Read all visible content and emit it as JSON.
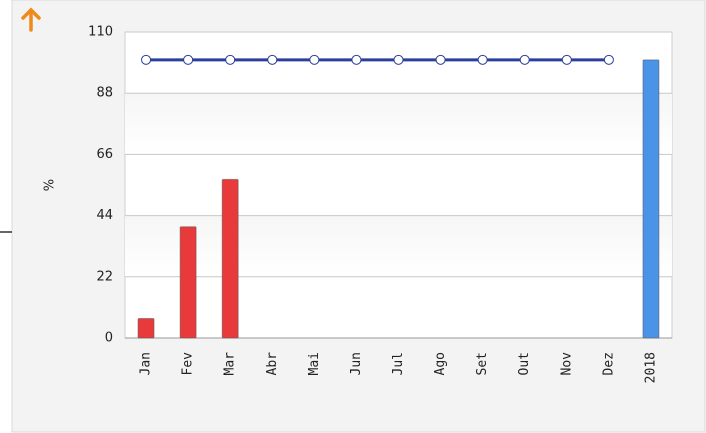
{
  "chart_data": {
    "type": "bar",
    "y_label": "%",
    "categories": [
      "Jan",
      "Fev",
      "Mar",
      "Abr",
      "Mai",
      "Jun",
      "Jul",
      "Ago",
      "Set",
      "Out",
      "Nov",
      "Dez",
      "2018"
    ],
    "ylim": [
      0,
      110
    ],
    "yticks": [
      0,
      22,
      44,
      66,
      88,
      110
    ],
    "grid": true,
    "series": [
      {
        "type": "bar",
        "color": "#e83a3a",
        "values": [
          7,
          40,
          57,
          null,
          null,
          null,
          null,
          null,
          null,
          null,
          null,
          null,
          null
        ]
      },
      {
        "type": "bar",
        "color": "#4a93e6",
        "values": [
          null,
          null,
          null,
          null,
          null,
          null,
          null,
          null,
          null,
          null,
          null,
          null,
          100
        ]
      },
      {
        "type": "line",
        "color": "#2b3f9c",
        "values": [
          100,
          100,
          100,
          100,
          100,
          100,
          100,
          100,
          100,
          100,
          100,
          100,
          null
        ]
      }
    ]
  }
}
